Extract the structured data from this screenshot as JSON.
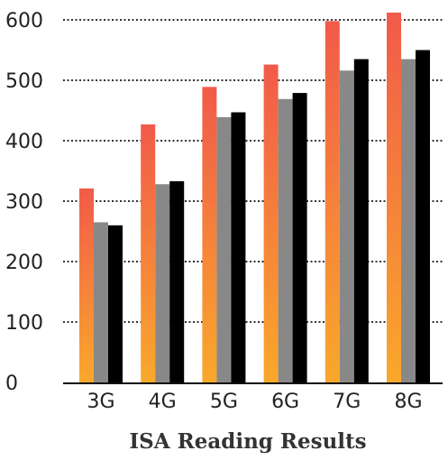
{
  "chart_data": {
    "type": "bar",
    "title": "ISA Reading Results",
    "xlabel": "",
    "ylabel": "",
    "categories": [
      "3G",
      "4G",
      "5G",
      "6G",
      "7G",
      "8G"
    ],
    "series": [
      {
        "values": [
          321,
          427,
          489,
          526,
          598,
          612
        ]
      },
      {
        "values": [
          265,
          328,
          439,
          469,
          516,
          535
        ]
      },
      {
        "values": [
          260,
          333,
          447,
          479,
          535,
          550
        ]
      }
    ],
    "ylim": [
      0,
      600
    ],
    "yticks": [
      0,
      100,
      200,
      300,
      400,
      500,
      600
    ],
    "grid": true,
    "grid_style": "dotted",
    "legend": "none",
    "colors": {
      "series1_top": "#f15a4a",
      "series1_bottom": "#f9a82b",
      "series2": "#888888",
      "series3": "#000000",
      "grid": "#333333",
      "axis": "#111111"
    }
  }
}
